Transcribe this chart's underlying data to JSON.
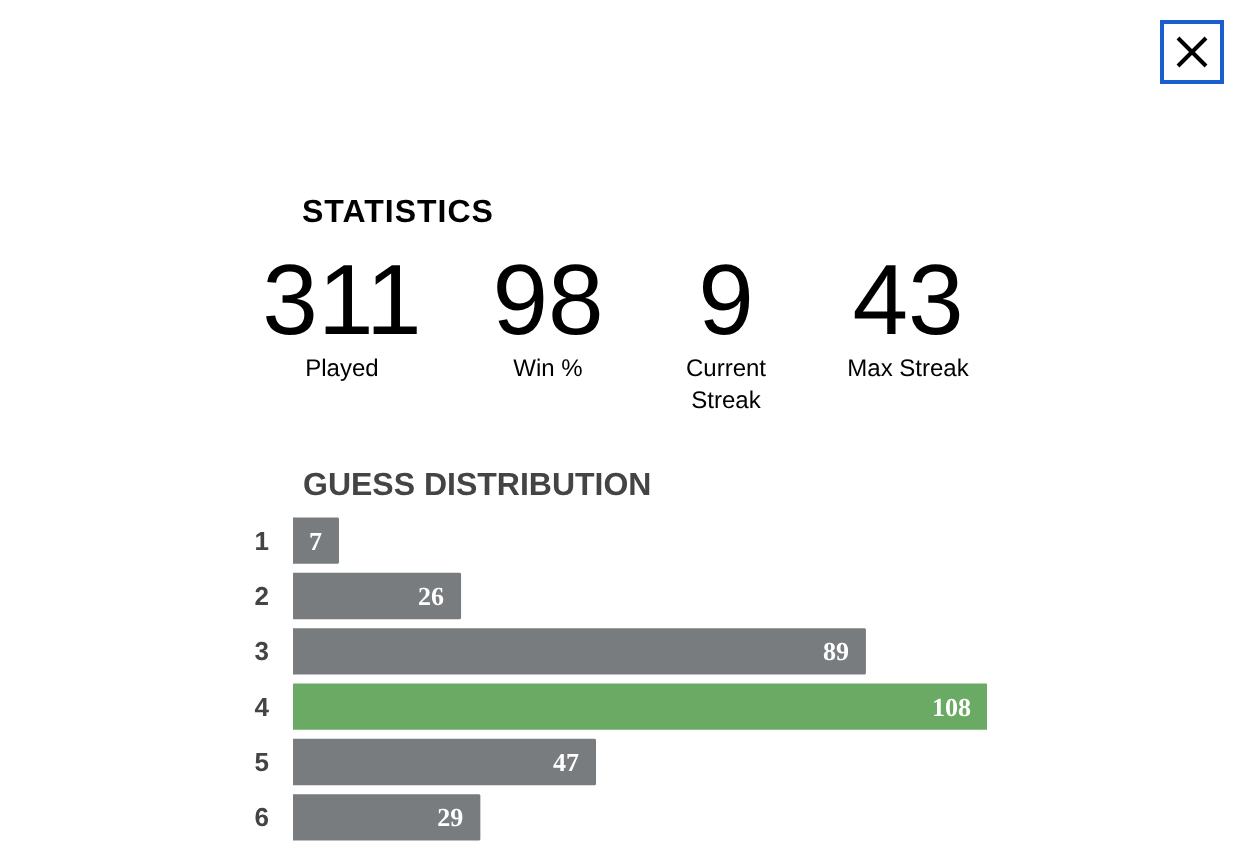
{
  "chart_data": [
    {
      "type": "other",
      "title": "STATISTICS",
      "annotations": [
        "311",
        "Played",
        "98",
        "Win %",
        "9",
        "Current Streak",
        "43",
        "Max Streak"
      ]
    },
    {
      "type": "bar",
      "orientation": "horizontal",
      "title": "GUESS DISTRIBUTION",
      "categories": [
        "1",
        "2",
        "3",
        "4",
        "5",
        "6"
      ],
      "values": [
        7,
        26,
        89,
        108,
        47,
        29
      ],
      "colors": [
        "#787c7e",
        "#787c7e",
        "#787c7e",
        "#6aaa64",
        "#787c7e",
        "#787c7e"
      ],
      "data_labels": true
    }
  ]
}
